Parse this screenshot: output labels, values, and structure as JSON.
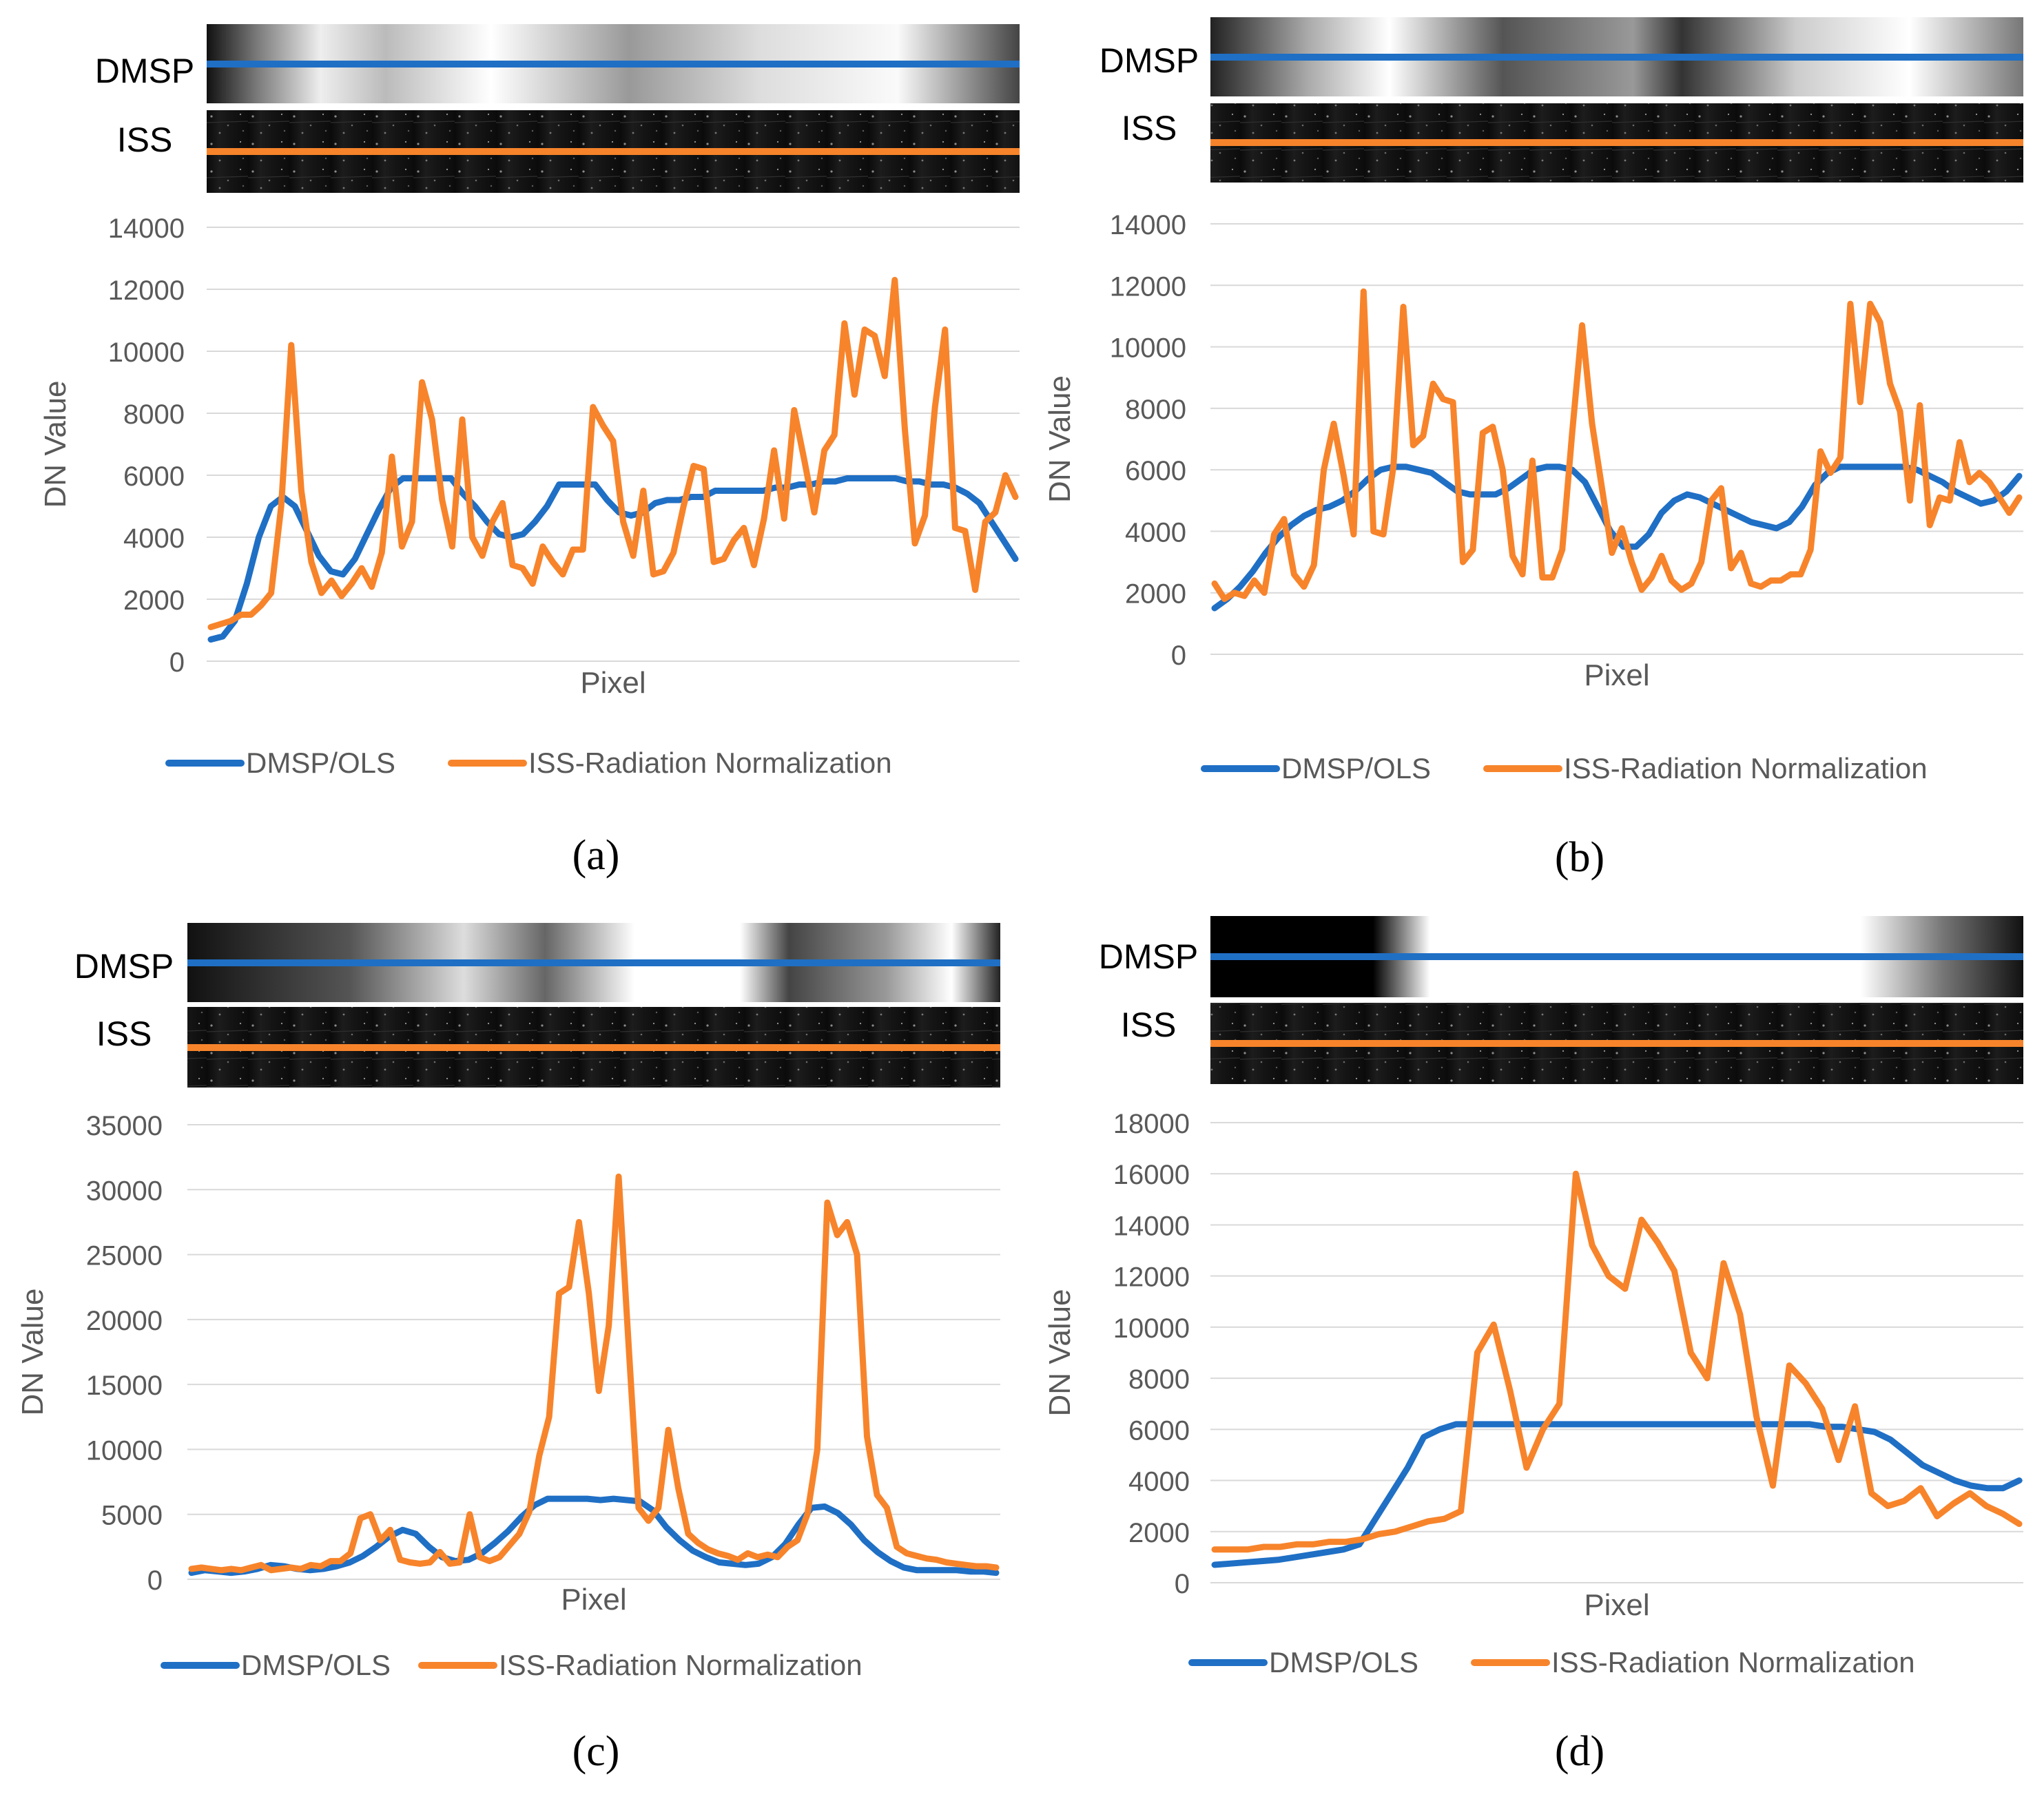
{
  "figure": {
    "series_names": [
      "DMSP/OLS",
      "ISS-Radiation Normalization"
    ],
    "colors": {
      "dmsp": "#1f6fc5",
      "iss": "#f7842b",
      "grid": "#d9d9d9",
      "tick": "#595959"
    },
    "strip_labels": {
      "dmsp": "DMSP",
      "iss": "ISS"
    }
  },
  "chart_data": [
    {
      "type": "line",
      "panel_label": "(a)",
      "xlabel": "Pixel",
      "ylabel": "DN Value",
      "ylim": [
        0,
        14000
      ],
      "yticks": [
        0,
        2000,
        4000,
        6000,
        8000,
        10000,
        12000,
        14000
      ],
      "series": [
        {
          "name": "DMSP/OLS",
          "values": [
            700,
            800,
            1300,
            2500,
            4000,
            5000,
            5300,
            5000,
            4200,
            3400,
            2900,
            2800,
            3300,
            4100,
            4900,
            5600,
            5900,
            5900,
            5900,
            5900,
            5900,
            5400,
            5000,
            4500,
            4100,
            4000,
            4100,
            4500,
            5000,
            5700,
            5700,
            5700,
            5700,
            5200,
            4800,
            4700,
            4800,
            5100,
            5200,
            5200,
            5300,
            5300,
            5500,
            5500,
            5500,
            5500,
            5500,
            5600,
            5600,
            5700,
            5700,
            5800,
            5800,
            5900,
            5900,
            5900,
            5900,
            5900,
            5800,
            5800,
            5700,
            5700,
            5600,
            5400,
            5100,
            4500,
            3900,
            3300
          ]
        },
        {
          "name": "ISS-Radiation Normalization",
          "values": [
            1100,
            1200,
            1300,
            1500,
            1500,
            1800,
            2200,
            5000,
            10200,
            5500,
            3200,
            2200,
            2600,
            2100,
            2500,
            3000,
            2400,
            3500,
            6600,
            3700,
            4500,
            9000,
            7800,
            5200,
            3700,
            7800,
            4000,
            3400,
            4500,
            5100,
            3100,
            3000,
            2500,
            3700,
            3200,
            2800,
            3600,
            3600,
            8200,
            7600,
            7100,
            4500,
            3400,
            5500,
            2800,
            2900,
            3500,
            5000,
            6300,
            6200,
            3200,
            3300,
            3900,
            4300,
            3100,
            4600,
            6800,
            4600,
            8100,
            6500,
            4800,
            6800,
            7300,
            10900,
            8600,
            10700,
            10500,
            9200,
            12300,
            7500,
            3800,
            4700,
            8200,
            10700,
            4300,
            4200,
            2300,
            4500,
            4800,
            6000,
            5300
          ]
        }
      ]
    },
    {
      "type": "line",
      "panel_label": "(b)",
      "xlabel": "Pixel",
      "ylabel": "DN Value",
      "ylim": [
        0,
        14000
      ],
      "yticks": [
        0,
        2000,
        4000,
        6000,
        8000,
        10000,
        12000,
        14000
      ],
      "series": [
        {
          "name": "DMSP/OLS",
          "values": [
            1500,
            1800,
            2200,
            2700,
            3300,
            3800,
            4200,
            4500,
            4700,
            4800,
            5000,
            5300,
            5700,
            6000,
            6100,
            6100,
            6000,
            5900,
            5600,
            5300,
            5200,
            5200,
            5200,
            5400,
            5700,
            6000,
            6100,
            6100,
            6000,
            5600,
            4800,
            4000,
            3500,
            3500,
            3900,
            4600,
            5000,
            5200,
            5100,
            4900,
            4700,
            4500,
            4300,
            4200,
            4100,
            4300,
            4800,
            5500,
            5900,
            6100,
            6100,
            6100,
            6100,
            6100,
            6100,
            6000,
            5800,
            5600,
            5300,
            5100,
            4900,
            5000,
            5300,
            5800
          ]
        },
        {
          "name": "ISS-Radiation Normalization",
          "values": [
            2300,
            1800,
            2000,
            1900,
            2400,
            2000,
            3900,
            4400,
            2600,
            2200,
            2900,
            6000,
            7500,
            5800,
            3900,
            11800,
            4000,
            3900,
            6100,
            11300,
            6800,
            7100,
            8800,
            8300,
            8200,
            3000,
            3400,
            7200,
            7400,
            6000,
            3200,
            2600,
            6300,
            2500,
            2500,
            3400,
            7200,
            10700,
            7500,
            5400,
            3300,
            4100,
            3000,
            2100,
            2500,
            3200,
            2400,
            2100,
            2300,
            3000,
            5000,
            5400,
            2800,
            3300,
            2300,
            2200,
            2400,
            2400,
            2600,
            2600,
            3400,
            6600,
            5900,
            6400,
            11400,
            8200,
            11400,
            10800,
            8800,
            7900,
            5000,
            8100,
            4200,
            5100,
            5000,
            6900,
            5600,
            5900,
            5600,
            5100,
            4600,
            5100
          ]
        }
      ]
    },
    {
      "type": "line",
      "panel_label": "(c)",
      "xlabel": "Pixel",
      "ylabel": "DN Value",
      "ylim": [
        0,
        35000
      ],
      "yticks": [
        0,
        5000,
        10000,
        15000,
        20000,
        25000,
        30000,
        35000
      ],
      "series": [
        {
          "name": "DMSP/OLS",
          "values": [
            500,
            700,
            600,
            500,
            600,
            800,
            1100,
            1000,
            800,
            700,
            800,
            1000,
            1300,
            1800,
            2500,
            3300,
            3800,
            3500,
            2500,
            1700,
            1400,
            1500,
            2000,
            2800,
            3700,
            4800,
            5700,
            6200,
            6200,
            6200,
            6200,
            6100,
            6200,
            6100,
            6000,
            5300,
            4000,
            3000,
            2200,
            1700,
            1300,
            1200,
            1100,
            1200,
            1700,
            2700,
            4200,
            5500,
            5600,
            5100,
            4200,
            3000,
            2100,
            1400,
            900,
            700,
            700,
            700,
            700,
            600,
            600,
            500
          ]
        },
        {
          "name": "ISS-Radiation Normalization",
          "values": [
            800,
            900,
            800,
            700,
            800,
            700,
            900,
            1100,
            700,
            800,
            900,
            800,
            1100,
            1000,
            1400,
            1400,
            2000,
            4700,
            5000,
            3000,
            3800,
            1500,
            1300,
            1200,
            1300,
            2100,
            1200,
            1300,
            5000,
            1700,
            1400,
            1700,
            2600,
            3500,
            5200,
            9500,
            12500,
            22000,
            22500,
            27500,
            22000,
            14500,
            19500,
            31000,
            18000,
            5500,
            4500,
            5500,
            11500,
            7000,
            3500,
            2800,
            2300,
            2000,
            1800,
            1500,
            2000,
            1700,
            1900,
            1700,
            2500,
            3000,
            5000,
            10000,
            29000,
            26500,
            27500,
            25000,
            11000,
            6500,
            5500,
            2500,
            2000,
            1800,
            1600,
            1500,
            1300,
            1200,
            1100,
            1000,
            1000,
            900
          ]
        }
      ]
    },
    {
      "type": "line",
      "panel_label": "(d)",
      "xlabel": "Pixel",
      "ylabel": "DN Value",
      "ylim": [
        0,
        18000
      ],
      "yticks": [
        0,
        2000,
        4000,
        6000,
        8000,
        10000,
        12000,
        14000,
        16000,
        18000
      ],
      "series": [
        {
          "name": "DMSP/OLS",
          "values": [
            700,
            750,
            800,
            850,
            900,
            1000,
            1100,
            1200,
            1300,
            1500,
            2500,
            3500,
            4500,
            5700,
            6000,
            6200,
            6200,
            6200,
            6200,
            6200,
            6200,
            6200,
            6200,
            6200,
            6200,
            6200,
            6200,
            6200,
            6200,
            6200,
            6200,
            6200,
            6200,
            6200,
            6200,
            6200,
            6200,
            6200,
            6100,
            6100,
            6000,
            5900,
            5600,
            5100,
            4600,
            4300,
            4000,
            3800,
            3700,
            3700,
            4000
          ]
        },
        {
          "name": "ISS-Radiation Normalization",
          "values": [
            1300,
            1300,
            1300,
            1400,
            1400,
            1500,
            1500,
            1600,
            1600,
            1700,
            1900,
            2000,
            2200,
            2400,
            2500,
            2800,
            9000,
            10100,
            7500,
            4500,
            6000,
            7000,
            16000,
            13200,
            12000,
            11500,
            14200,
            13300,
            12200,
            9000,
            8000,
            12500,
            10500,
            6500,
            3800,
            8500,
            7800,
            6800,
            4800,
            6900,
            3500,
            3000,
            3200,
            3700,
            2600,
            3100,
            3500,
            3000,
            2700,
            2300
          ]
        }
      ]
    }
  ]
}
